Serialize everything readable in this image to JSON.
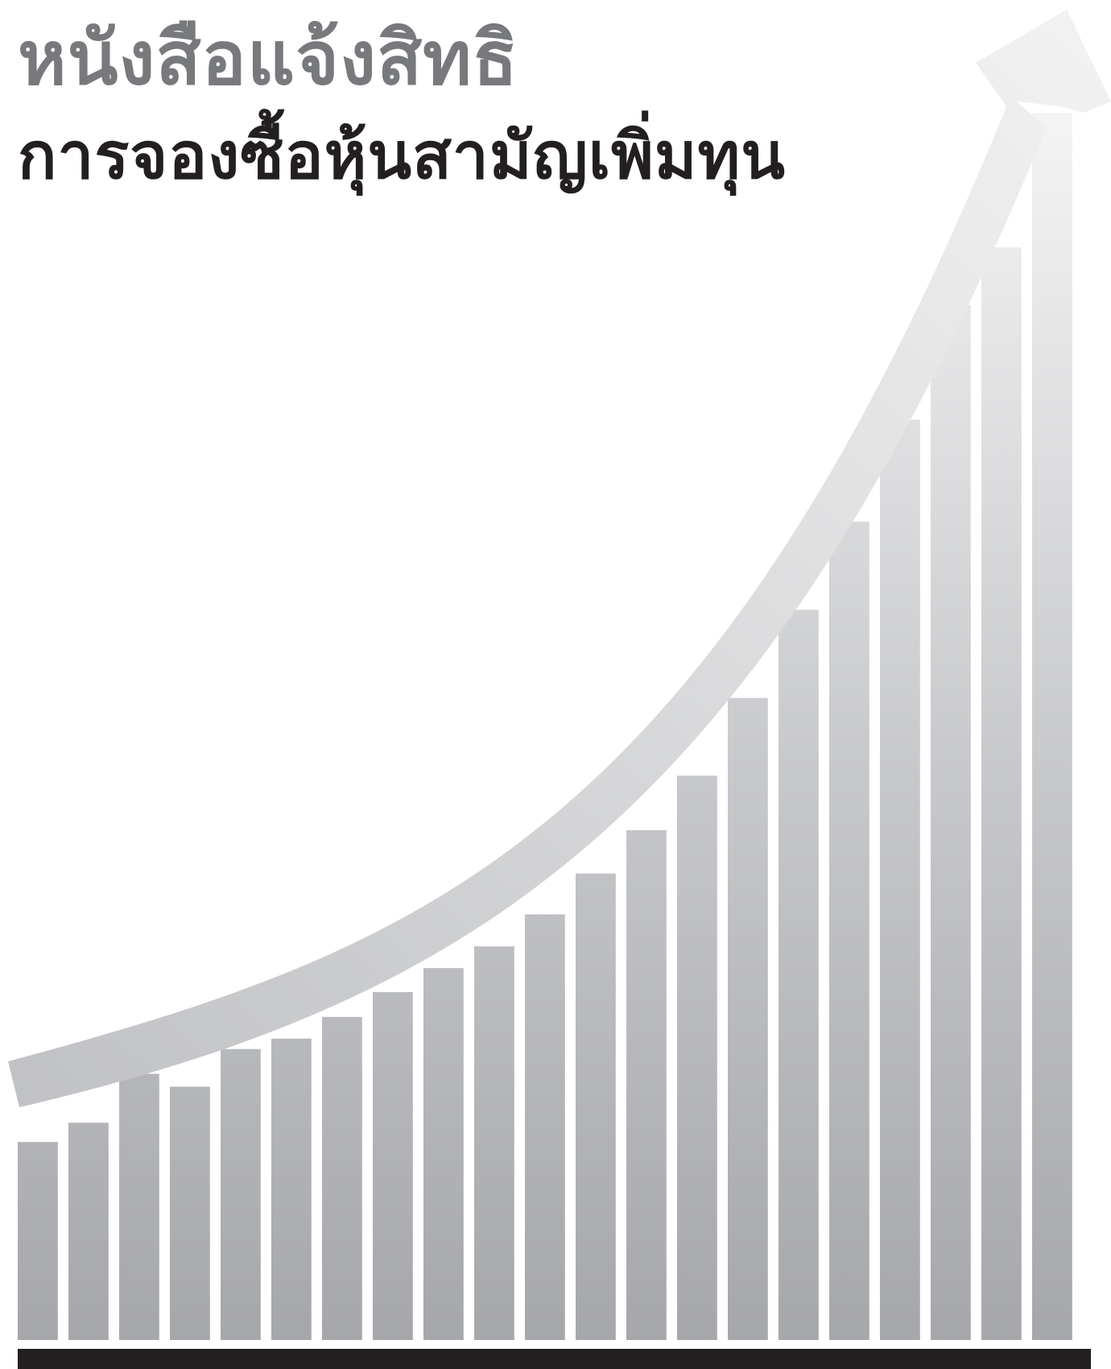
{
  "cover": {
    "title_line1": "หนังสือแจ้งสิทธิ",
    "title_line2": "การจองซื้อหุ้นสามัญเพิ่มทุน",
    "title_line1_color": "#77797c",
    "title_line2_color": "#231f20"
  },
  "chart_data": {
    "type": "bar",
    "bar_count": 21,
    "values": [
      247,
      271,
      332,
      316,
      363,
      376,
      403,
      434,
      464,
      491,
      531,
      582,
      636,
      704,
      801,
      911,
      1021,
      1148,
      1291,
      1363,
      1531
    ],
    "has_trend_arrow": true,
    "bar_gradient": [
      "#f4f4f4",
      "#a6a7ab"
    ],
    "arrow_gradient": [
      "#f1f1f1",
      "#c1c2c5"
    ],
    "baseline_color": "#231f20"
  }
}
